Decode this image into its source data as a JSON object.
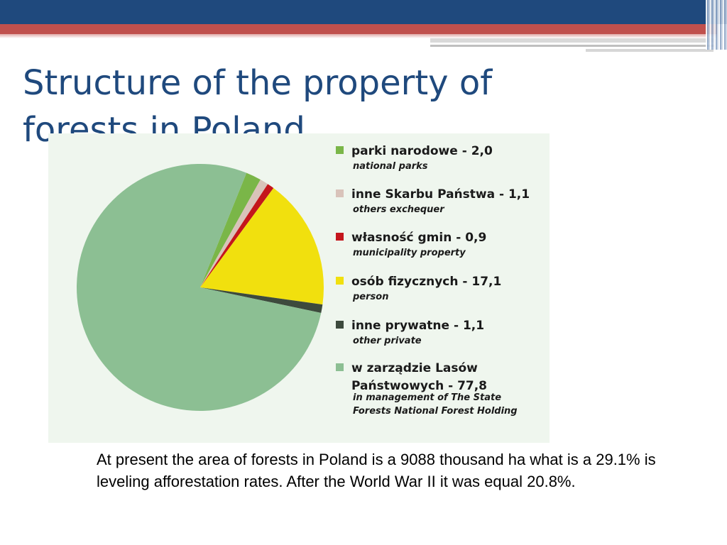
{
  "slide": {
    "title_line1": "Structure of the property of",
    "title_line2": "forests in Poland",
    "caption": "At present the area of forests in Poland is a 9088 thousand ha what is a 29.1% is leveling afforestation rates. After the World War II it was equal 20.8%."
  },
  "colors": {
    "header_blue": "#1f497d",
    "header_red": "#c0504d",
    "title_text": "#1f497d",
    "chart_background": "#eff6ee"
  },
  "chart_data": {
    "type": "pie",
    "title": "",
    "start_angle_deg": 68,
    "series": [
      {
        "label": "parki narodowe - 2,0",
        "sublabel": "national parks",
        "value": 2.0,
        "color": "#7ab648"
      },
      {
        "label": "inne Skarbu Państwa - 1,1",
        "sublabel": "others exchequer",
        "value": 1.1,
        "color": "#d9c3ba"
      },
      {
        "label": "własność gmin - 0,9",
        "sublabel": "municipality property",
        "value": 0.9,
        "color": "#c4161c"
      },
      {
        "label": "osób fizycznych - 17,1",
        "sublabel": "person",
        "value": 17.1,
        "color": "#f1e00e"
      },
      {
        "label": "inne prywatne - 1,1",
        "sublabel": "other private",
        "value": 1.1,
        "color": "#3d4a3d"
      },
      {
        "label": "w zarządzie Lasów Państwowych - 77,8",
        "label_lines": [
          "w zarządzie Lasów",
          "Państwowych - 77,8"
        ],
        "sublabel_lines": [
          "in management of The State",
          "Forests National Forest Holding"
        ],
        "value": 77.8,
        "color": "#8cbf93"
      }
    ],
    "legend_position": "right"
  }
}
